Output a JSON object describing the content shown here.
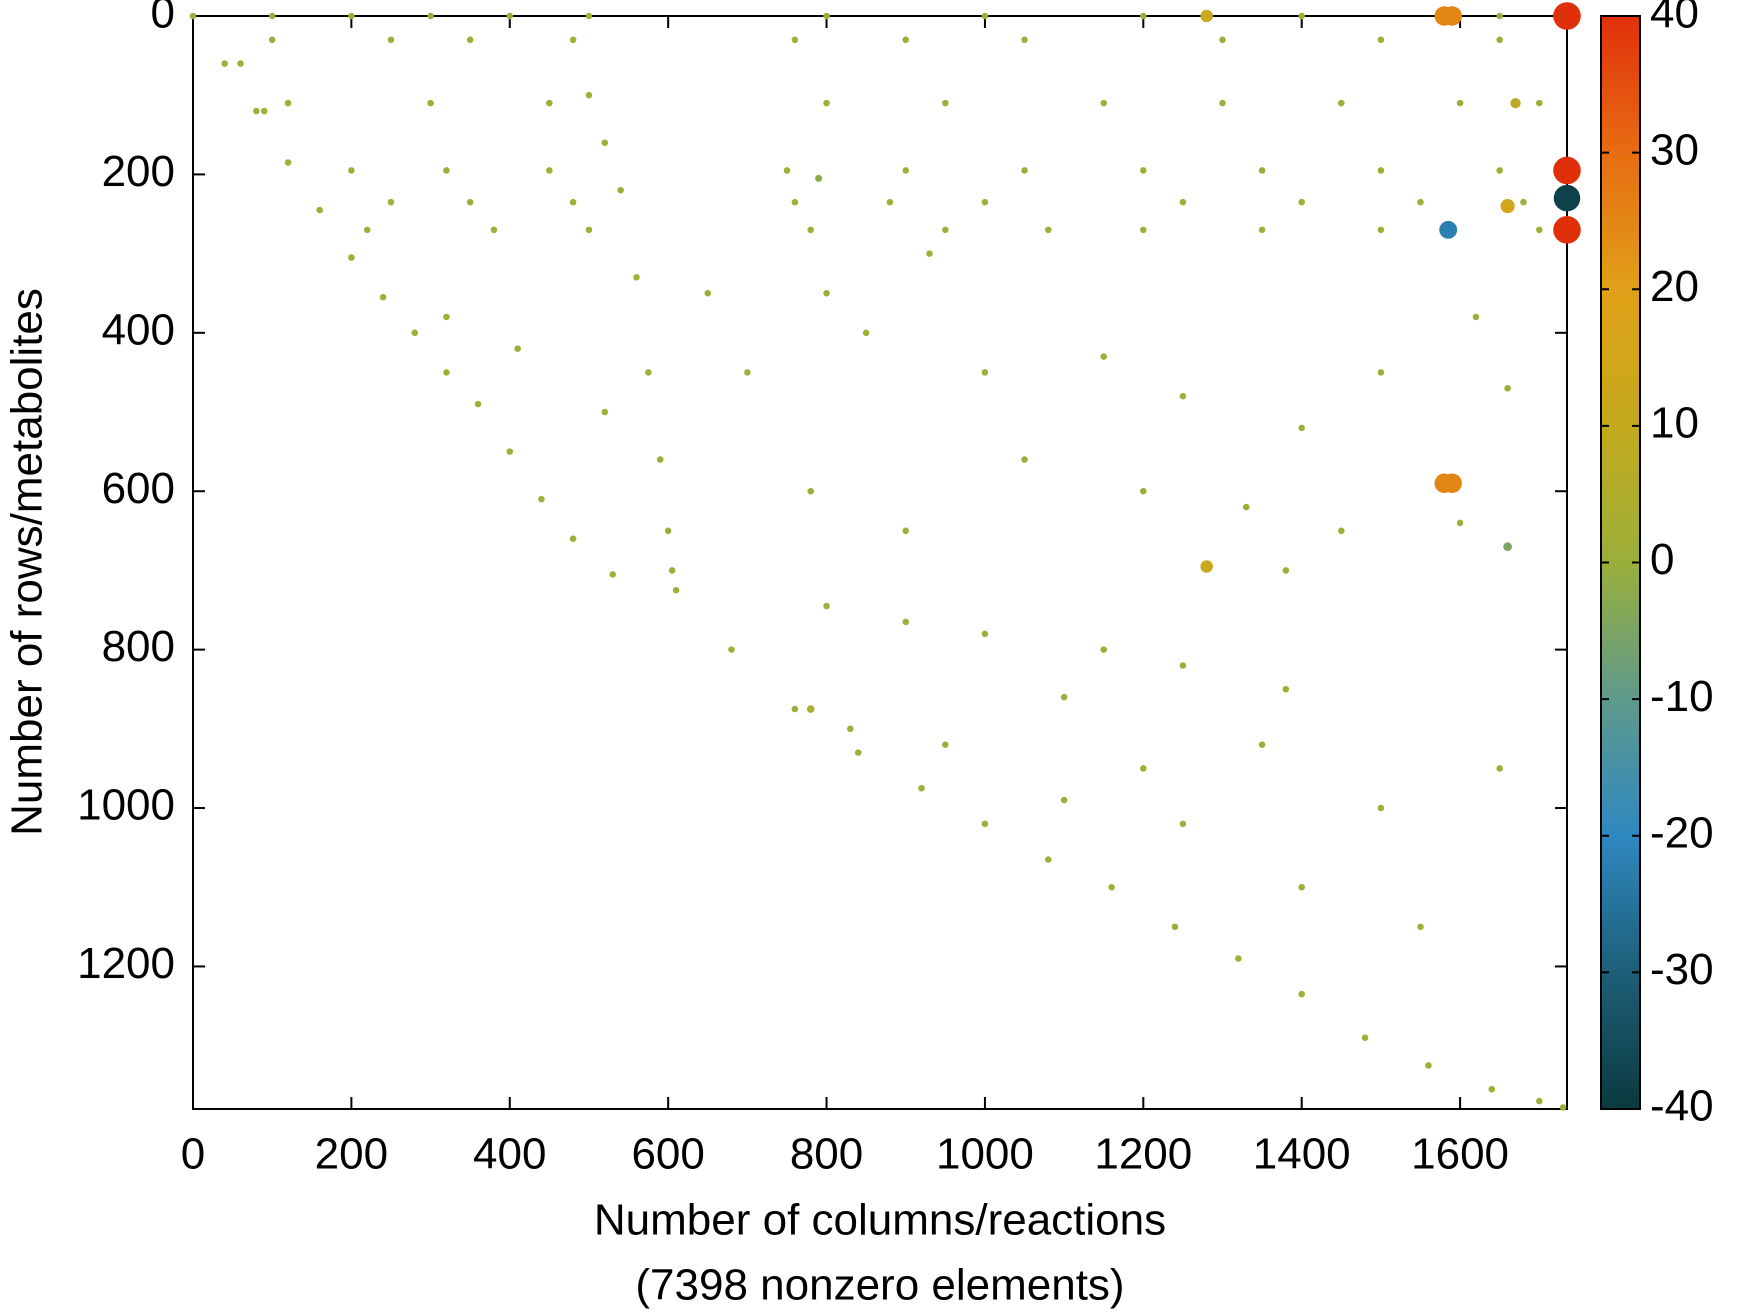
{
  "chart_data": {
    "type": "scatter",
    "xlabel": "Number of columns/reactions",
    "annotation": "(7398 nonzero elements)",
    "ylabel": "Number of rows/metabolites",
    "xlim": [
      0,
      1735
    ],
    "ylim": [
      1380,
      0
    ],
    "xticks": [
      0,
      200,
      400,
      600,
      800,
      1000,
      1200,
      1400,
      1600
    ],
    "yticks": [
      0,
      200,
      400,
      600,
      800,
      1000,
      1200
    ],
    "clim": [
      -40,
      40
    ],
    "cticks": [
      -40,
      -30,
      -20,
      -10,
      0,
      10,
      20,
      30,
      40
    ],
    "colormap": [
      "#0b3a3f",
      "#1d5f78",
      "#2f88c0",
      "#5e9a8c",
      "#9aaf3a",
      "#c4aa1c",
      "#e0a018",
      "#e86c12",
      "#e0300a"
    ],
    "series": [
      {
        "x": [
          0,
          40,
          80,
          120,
          160,
          200,
          240,
          280,
          320,
          360
        ],
        "y": [
          0,
          60,
          120,
          185,
          245,
          305,
          355,
          400,
          450,
          490
        ],
        "values": [
          1,
          1,
          1,
          1,
          1,
          1,
          1,
          1,
          1,
          1
        ]
      },
      {
        "x": [
          400,
          440,
          480,
          530,
          610,
          680,
          760,
          840,
          920,
          1000
        ],
        "y": [
          550,
          610,
          660,
          705,
          725,
          800,
          875,
          930,
          975,
          1020
        ],
        "values": [
          1,
          1,
          1,
          1,
          1,
          1,
          1,
          1,
          1,
          1
        ]
      },
      {
        "x": [
          1080,
          1160,
          1240,
          1320,
          1400,
          1480,
          1560,
          1640,
          1700,
          1730
        ],
        "y": [
          1065,
          1100,
          1150,
          1190,
          1235,
          1290,
          1325,
          1355,
          1370,
          1378
        ],
        "values": [
          1,
          1,
          1,
          1,
          1,
          1,
          1,
          1,
          1,
          1
        ]
      },
      {
        "x": [
          60,
          90,
          500,
          520,
          540,
          560,
          575,
          590,
          600,
          605
        ],
        "y": [
          60,
          120,
          100,
          160,
          220,
          330,
          450,
          560,
          650,
          700
        ],
        "values": [
          1,
          1,
          1,
          1,
          1,
          1,
          1,
          1,
          1,
          1
        ]
      },
      {
        "x": [
          100,
          200,
          300,
          400,
          500,
          800,
          1000,
          1200,
          1400,
          1650
        ],
        "y": [
          0,
          0,
          0,
          0,
          0,
          0,
          0,
          0,
          0,
          0
        ],
        "values": [
          1,
          1,
          1,
          1,
          1,
          1,
          1,
          1,
          1,
          1
        ]
      },
      {
        "x": [
          100,
          250,
          350,
          480,
          760,
          900,
          1050,
          1300,
          1500,
          1650
        ],
        "y": [
          30,
          30,
          30,
          30,
          30,
          30,
          30,
          30,
          30,
          30
        ],
        "values": [
          1,
          1,
          1,
          1,
          1,
          1,
          1,
          1,
          1,
          1
        ]
      },
      {
        "x": [
          120,
          300,
          450,
          800,
          950,
          1150,
          1300,
          1450,
          1600,
          1700
        ],
        "y": [
          110,
          110,
          110,
          110,
          110,
          110,
          110,
          110,
          110,
          110
        ],
        "values": [
          1,
          1,
          1,
          1,
          1,
          1,
          1,
          1,
          1,
          1
        ]
      },
      {
        "x": [
          200,
          320,
          450,
          750,
          900,
          1050,
          1200,
          1350,
          1500,
          1650
        ],
        "y": [
          195,
          195,
          195,
          195,
          195,
          195,
          195,
          195,
          195,
          195
        ],
        "values": [
          1,
          1,
          1,
          1,
          1,
          1,
          1,
          1,
          1,
          1
        ]
      },
      {
        "x": [
          250,
          350,
          480,
          760,
          880,
          1000,
          1250,
          1400,
          1550,
          1680
        ],
        "y": [
          235,
          235,
          235,
          235,
          235,
          235,
          235,
          235,
          235,
          235
        ],
        "values": [
          1,
          1,
          1,
          1,
          1,
          1,
          1,
          1,
          1,
          1
        ]
      },
      {
        "x": [
          220,
          380,
          500,
          780,
          950,
          1080,
          1200,
          1350,
          1500,
          1700
        ],
        "y": [
          270,
          270,
          270,
          270,
          270,
          270,
          270,
          270,
          270,
          270
        ],
        "values": [
          1,
          1,
          1,
          1,
          1,
          1,
          1,
          1,
          1,
          1
        ]
      },
      {
        "x": [
          800,
          900,
          1000,
          1150,
          1250,
          1380,
          320,
          410,
          520,
          700
        ],
        "y": [
          745,
          765,
          780,
          800,
          820,
          850,
          380,
          420,
          500,
          450
        ],
        "values": [
          1,
          1,
          1,
          1,
          1,
          1,
          1,
          1,
          1,
          1
        ]
      },
      {
        "x": [
          800,
          850,
          930,
          1000,
          1150,
          1250,
          1400,
          1500,
          1620,
          1660
        ],
        "y": [
          350,
          400,
          300,
          450,
          430,
          480,
          520,
          450,
          380,
          470
        ],
        "values": [
          1,
          1,
          1,
          1,
          1,
          1,
          1,
          1,
          1,
          1
        ]
      },
      {
        "x": [
          780,
          900,
          1050,
          1200,
          1330,
          1450,
          1600,
          1380,
          650,
          1100
        ],
        "y": [
          600,
          650,
          560,
          600,
          620,
          650,
          640,
          700,
          350,
          990
        ],
        "values": [
          1,
          1,
          1,
          1,
          1,
          1,
          1,
          1,
          1,
          1
        ]
      },
      {
        "x": [
          830,
          950,
          1100,
          1200,
          1350,
          1500,
          1650,
          1250,
          1400,
          1550
        ],
        "y": [
          900,
          920,
          860,
          950,
          920,
          1000,
          950,
          1020,
          1100,
          1150
        ],
        "values": [
          1,
          1,
          1,
          1,
          1,
          1,
          1,
          1,
          1,
          1
        ]
      },
      {
        "x": [
          1580,
          1590,
          1735,
          1735,
          1735,
          1735,
          1585,
          1580,
          1590,
          1660,
          1660,
          1280,
          1280,
          780,
          790,
          1670
        ],
        "y": [
          0,
          0,
          0,
          195,
          230,
          270,
          270,
          590,
          590,
          240,
          670,
          695,
          0,
          875,
          205,
          110
        ],
        "values": [
          25,
          25,
          40,
          40,
          -38,
          40,
          -22,
          25,
          25,
          15,
          -5,
          12,
          12,
          3,
          -2,
          8
        ]
      }
    ]
  }
}
